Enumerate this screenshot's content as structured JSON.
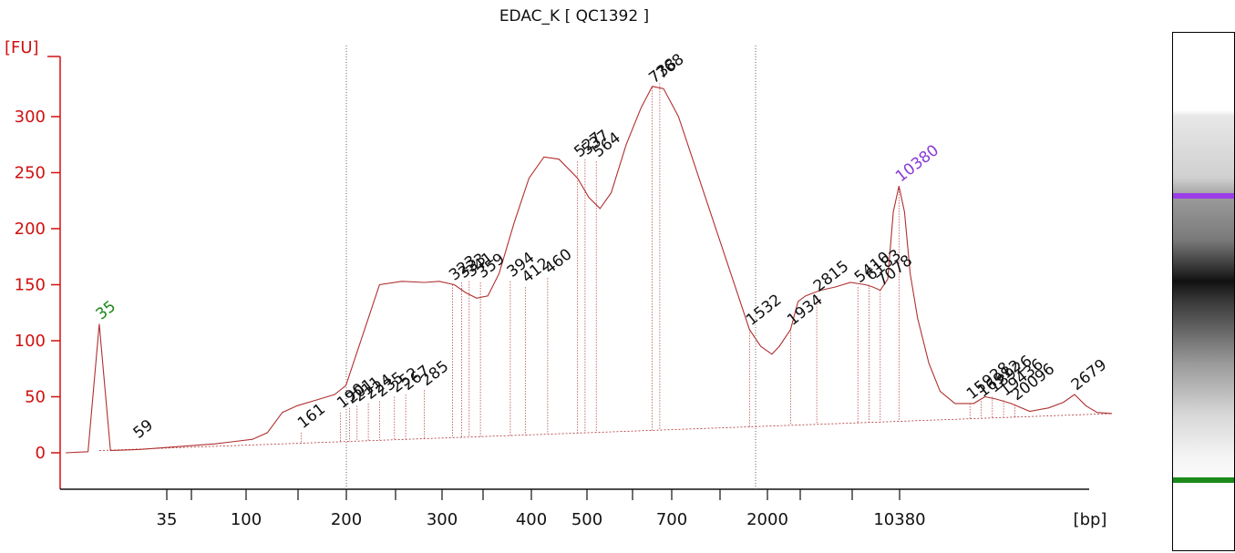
{
  "title": "EDAC_K  [ QC1392 ]",
  "chart_data": {
    "type": "line",
    "title": "EDAC_K  [ QC1392 ]",
    "ylabel": "[FU]",
    "xlabel": "[bp]",
    "ylim": [
      -40,
      350
    ],
    "y_ticks": [
      0,
      50,
      100,
      150,
      200,
      250,
      300
    ],
    "x_tick_labels": [
      "35",
      "100",
      "200",
      "300",
      "400",
      "500",
      "700",
      "2000",
      "10380"
    ],
    "series": [
      {
        "color": "#b03030",
        "points": [
          [
            0,
            0
          ],
          [
            6,
            1
          ],
          [
            9,
            115
          ],
          [
            12,
            2
          ],
          [
            20,
            3
          ],
          [
            40,
            8
          ],
          [
            50,
            12
          ],
          [
            54,
            18
          ],
          [
            58,
            36
          ],
          [
            62,
            42
          ],
          [
            68,
            48
          ],
          [
            72,
            52
          ],
          [
            75,
            60
          ],
          [
            77,
            80
          ],
          [
            80,
            110
          ],
          [
            84,
            150
          ],
          [
            90,
            153
          ],
          [
            96,
            152
          ],
          [
            100,
            153
          ],
          [
            104,
            150
          ],
          [
            107,
            143
          ],
          [
            110,
            138
          ],
          [
            113,
            140
          ],
          [
            116,
            160
          ],
          [
            120,
            205
          ],
          [
            124,
            245
          ],
          [
            128,
            264
          ],
          [
            132,
            262
          ],
          [
            137,
            245
          ],
          [
            140,
            228
          ],
          [
            143,
            218
          ],
          [
            146,
            232
          ],
          [
            150,
            275
          ],
          [
            154,
            308
          ],
          [
            157,
            327
          ],
          [
            160,
            325
          ],
          [
            164,
            300
          ],
          [
            170,
            240
          ],
          [
            176,
            180
          ],
          [
            181,
            130
          ],
          [
            183,
            110
          ],
          [
            186,
            95
          ],
          [
            189,
            88
          ],
          [
            191,
            95
          ],
          [
            194,
            110
          ],
          [
            196,
            135
          ],
          [
            198,
            140
          ],
          [
            202,
            145
          ],
          [
            206,
            148
          ],
          [
            210,
            152
          ],
          [
            214,
            150
          ],
          [
            216,
            148
          ],
          [
            218,
            145
          ],
          [
            220,
            155
          ],
          [
            221.5,
            215
          ],
          [
            223,
            238
          ],
          [
            224.5,
            215
          ],
          [
            226,
            160
          ],
          [
            228,
            120
          ],
          [
            231,
            80
          ],
          [
            234,
            55
          ],
          [
            238,
            44
          ],
          [
            243,
            44
          ],
          [
            246,
            50
          ],
          [
            249,
            48
          ],
          [
            253,
            44
          ],
          [
            258,
            37
          ],
          [
            263,
            40
          ],
          [
            267,
            45
          ],
          [
            270,
            52
          ],
          [
            273,
            42
          ],
          [
            276,
            36
          ],
          [
            280,
            35
          ]
        ]
      }
    ],
    "peak_labels": [
      {
        "label": "35",
        "x": 9,
        "y": 115,
        "color": "#1a8a1a"
      },
      {
        "label": "59",
        "x": 19,
        "y": 9,
        "color": "#111111"
      },
      {
        "label": "161",
        "x": 63,
        "y": 18,
        "color": "#111111"
      },
      {
        "label": "190",
        "x": 73.5,
        "y": 36,
        "color": "#111111"
      },
      {
        "label": "201",
        "x": 76,
        "y": 40,
        "color": "#111111"
      },
      {
        "label": "211",
        "x": 78,
        "y": 42,
        "color": "#111111"
      },
      {
        "label": "224",
        "x": 81,
        "y": 44,
        "color": "#111111"
      },
      {
        "label": "235",
        "x": 84,
        "y": 46,
        "color": "#111111"
      },
      {
        "label": "252",
        "x": 88,
        "y": 50,
        "color": "#111111"
      },
      {
        "label": "267",
        "x": 91,
        "y": 52,
        "color": "#111111"
      },
      {
        "label": "285",
        "x": 96,
        "y": 56,
        "color": "#111111"
      },
      {
        "label": "323",
        "x": 103.5,
        "y": 150,
        "color": "#111111"
      },
      {
        "label": "333",
        "x": 106,
        "y": 152,
        "color": "#111111"
      },
      {
        "label": "341",
        "x": 108,
        "y": 153,
        "color": "#111111"
      },
      {
        "label": "359",
        "x": 111,
        "y": 152,
        "color": "#111111"
      },
      {
        "label": "394",
        "x": 119,
        "y": 153,
        "color": "#111111"
      },
      {
        "label": "412",
        "x": 123,
        "y": 148,
        "color": "#111111"
      },
      {
        "label": "460",
        "x": 129,
        "y": 156,
        "color": "#111111"
      },
      {
        "label": "527",
        "x": 137,
        "y": 260,
        "color": "#111111"
      },
      {
        "label": "537",
        "x": 139,
        "y": 262,
        "color": "#111111"
      },
      {
        "label": "564",
        "x": 142,
        "y": 260,
        "color": "#111111"
      },
      {
        "label": "738",
        "x": 157,
        "y": 326,
        "color": "#111111"
      },
      {
        "label": "768",
        "x": 159,
        "y": 330,
        "color": "#111111"
      },
      {
        "label": "1532",
        "x": 183,
        "y": 110,
        "color": "#111111"
      },
      {
        "label": "1934",
        "x": 194,
        "y": 110,
        "color": "#111111"
      },
      {
        "label": "2815",
        "x": 201,
        "y": 140,
        "color": "#111111"
      },
      {
        "label": "5410",
        "x": 212,
        "y": 148,
        "color": "#111111"
      },
      {
        "label": "6183",
        "x": 215,
        "y": 150,
        "color": "#111111"
      },
      {
        "label": "7078",
        "x": 218,
        "y": 145,
        "color": "#111111"
      },
      {
        "label": "10380",
        "x": 223,
        "y": 238,
        "color": "#8a3ad6"
      },
      {
        "label": "15928",
        "x": 242,
        "y": 44,
        "color": "#111111"
      },
      {
        "label": "16912",
        "x": 245,
        "y": 46,
        "color": "#111111"
      },
      {
        "label": "18926",
        "x": 248,
        "y": 50,
        "color": "#111111"
      },
      {
        "label": "19436",
        "x": 251,
        "y": 47,
        "color": "#111111"
      },
      {
        "label": "20096",
        "x": 254,
        "y": 43,
        "color": "#111111"
      },
      {
        "label": "2679",
        "x": 270,
        "y": 52,
        "color": "#111111"
      }
    ],
    "gel": {
      "ladder_lines": [
        {
          "position": 0.31,
          "color": "#9b3ee8"
        },
        {
          "position": 0.86,
          "color": "#1a8a1a"
        }
      ]
    }
  }
}
